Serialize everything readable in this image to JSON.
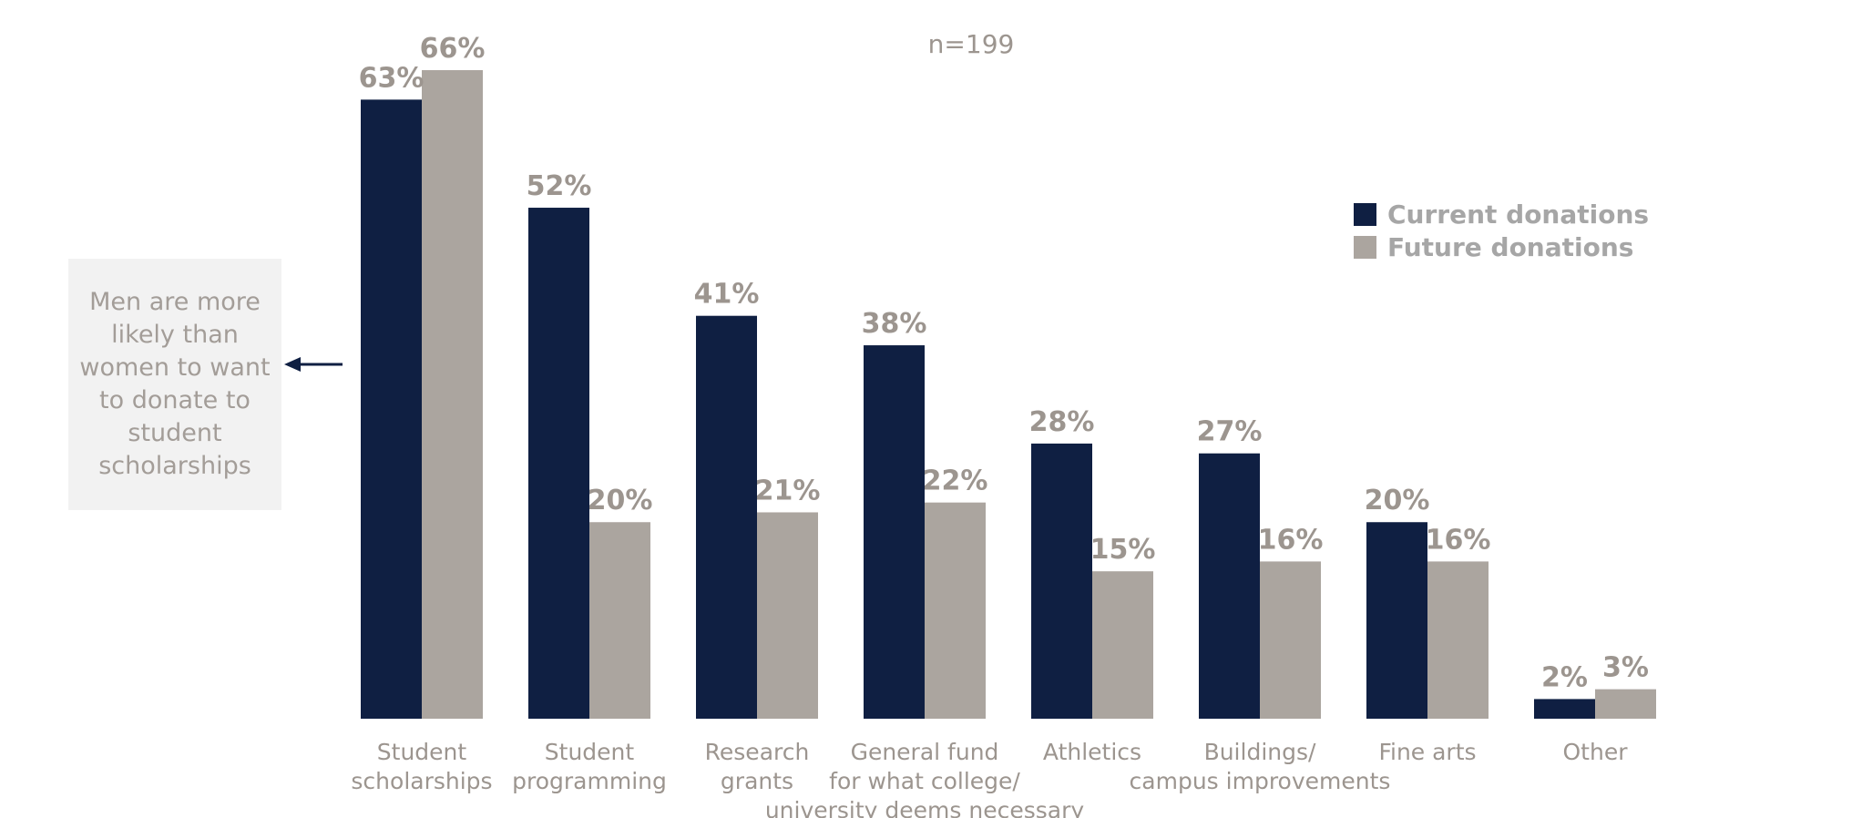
{
  "chart_data": {
    "type": "bar",
    "subtitle": "n=199",
    "categories": [
      [
        "Student",
        "scholarships"
      ],
      [
        "Student",
        "programming"
      ],
      [
        "Research",
        "grants"
      ],
      [
        "General fund",
        "for what college/",
        "university deems necessary"
      ],
      [
        "Athletics"
      ],
      [
        "Buildings/",
        "campus improvements"
      ],
      [
        "Fine arts"
      ],
      [
        "Other"
      ]
    ],
    "series": [
      {
        "name": "Current donations",
        "color": "#0f1f42",
        "values": [
          63,
          52,
          41,
          38,
          28,
          27,
          20,
          2
        ]
      },
      {
        "name": "Future donations",
        "color": "#aba59f",
        "values": [
          66,
          20,
          21,
          22,
          15,
          16,
          16,
          3
        ]
      }
    ],
    "value_suffix": "%",
    "ylim": [
      0,
      66
    ],
    "grid": false,
    "legend_position": "top-right",
    "label_color": "#9c958f",
    "legend_text_color": "#a6a6a6"
  },
  "annotation": {
    "text": "Men are more likely than women to want to donate to student scholarships",
    "arrow_color": "#0f1f42",
    "icon": "left-arrow-icon"
  }
}
